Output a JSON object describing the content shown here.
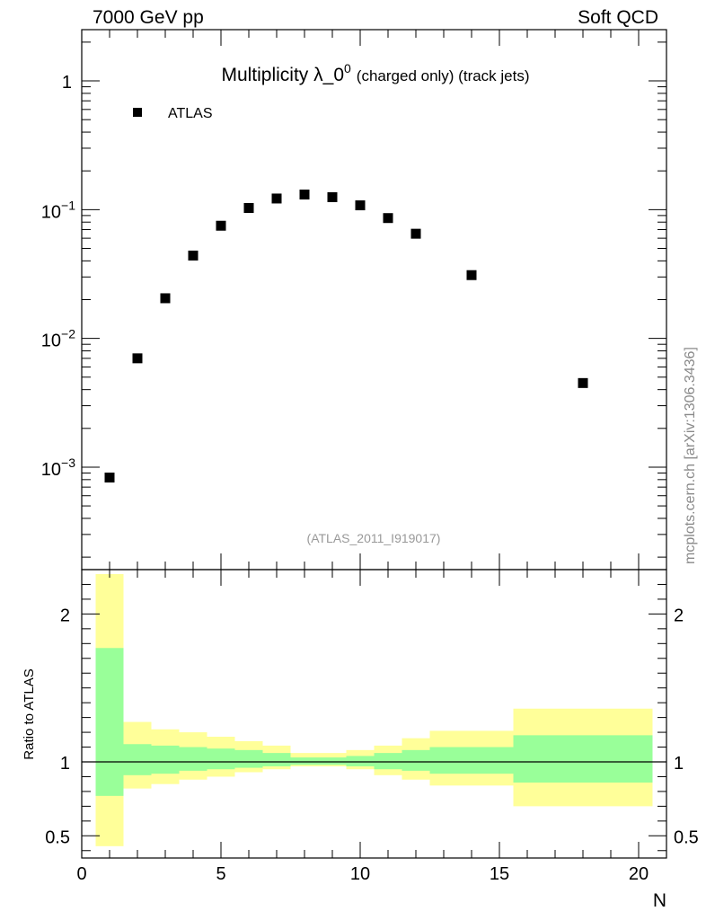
{
  "header": {
    "left_label": "7000 GeV pp",
    "right_label": "Soft QCD"
  },
  "watermark": "mcplots.cern.ch [arXiv:1306.3436]",
  "chart_data": [
    {
      "type": "scatter",
      "title": "Multiplicity λ_0",
      "title_superscript": "0",
      "title_suffix": "(charged only) (track jets)",
      "analysis_label": "(ATLAS_2011_I919017)",
      "legend": {
        "entries": [
          "ATLAS"
        ],
        "placement": "top-left"
      },
      "y_scale": "log",
      "xlim": [
        0,
        21
      ],
      "ylim": [
        0.00016,
        2.5
      ],
      "y_ticks": [
        {
          "value": 1,
          "label": "1"
        },
        {
          "value": 0.1,
          "label": "10",
          "exp": "−1"
        },
        {
          "value": 0.01,
          "label": "10",
          "exp": "−2"
        },
        {
          "value": 0.001,
          "label": "10",
          "exp": "−3"
        }
      ],
      "series": [
        {
          "name": "ATLAS",
          "marker": "square",
          "color": "#000000",
          "points": [
            {
              "x": 1,
              "y": 0.00083
            },
            {
              "x": 2,
              "y": 0.007
            },
            {
              "x": 3,
              "y": 0.0205
            },
            {
              "x": 4,
              "y": 0.044
            },
            {
              "x": 5,
              "y": 0.075
            },
            {
              "x": 6,
              "y": 0.103
            },
            {
              "x": 7,
              "y": 0.122
            },
            {
              "x": 8,
              "y": 0.131
            },
            {
              "x": 9,
              "y": 0.125
            },
            {
              "x": 10,
              "y": 0.108
            },
            {
              "x": 11,
              "y": 0.086
            },
            {
              "x": 12,
              "y": 0.065
            },
            {
              "x": 14,
              "y": 0.031
            },
            {
              "x": 18,
              "y": 0.0045
            }
          ]
        }
      ]
    },
    {
      "type": "area",
      "ylabel": "Ratio to ATLAS",
      "xlabel": "N",
      "xlim": [
        0,
        21
      ],
      "ylim": [
        0.35,
        2.3
      ],
      "x_ticks": [
        0,
        5,
        10,
        15,
        20
      ],
      "y_ticks": [
        {
          "value": 0.5,
          "label": "0.5"
        },
        {
          "value": 1,
          "label": "1"
        },
        {
          "value": 2,
          "label": "2"
        }
      ],
      "reference_line": 1,
      "bands": [
        {
          "name": "stat",
          "color": "#99ff99",
          "description": "inner uncertainty band"
        },
        {
          "name": "total",
          "color": "#ffff99",
          "description": "outer uncertainty band"
        }
      ],
      "bins": [
        {
          "xlo": 0.5,
          "xhi": 1.5,
          "inner": [
            0.77,
            1.77
          ],
          "outer": [
            0.43,
            2.27
          ]
        },
        {
          "xlo": 1.5,
          "xhi": 2.5,
          "inner": [
            0.91,
            1.12
          ],
          "outer": [
            0.82,
            1.27
          ]
        },
        {
          "xlo": 2.5,
          "xhi": 3.5,
          "inner": [
            0.92,
            1.11
          ],
          "outer": [
            0.85,
            1.22
          ]
        },
        {
          "xlo": 3.5,
          "xhi": 4.5,
          "inner": [
            0.94,
            1.1
          ],
          "outer": [
            0.88,
            1.2
          ]
        },
        {
          "xlo": 4.5,
          "xhi": 5.5,
          "inner": [
            0.95,
            1.09
          ],
          "outer": [
            0.9,
            1.17
          ]
        },
        {
          "xlo": 5.5,
          "xhi": 6.5,
          "inner": [
            0.96,
            1.08
          ],
          "outer": [
            0.93,
            1.14
          ]
        },
        {
          "xlo": 6.5,
          "xhi": 7.5,
          "inner": [
            0.97,
            1.06
          ],
          "outer": [
            0.95,
            1.11
          ]
        },
        {
          "xlo": 7.5,
          "xhi": 8.5,
          "inner": [
            0.98,
            1.03
          ],
          "outer": [
            0.97,
            1.06
          ]
        },
        {
          "xlo": 8.5,
          "xhi": 9.5,
          "inner": [
            0.98,
            1.03
          ],
          "outer": [
            0.97,
            1.06
          ]
        },
        {
          "xlo": 9.5,
          "xhi": 10.5,
          "inner": [
            0.97,
            1.04
          ],
          "outer": [
            0.95,
            1.08
          ]
        },
        {
          "xlo": 10.5,
          "xhi": 11.5,
          "inner": [
            0.95,
            1.06
          ],
          "outer": [
            0.91,
            1.11
          ]
        },
        {
          "xlo": 11.5,
          "xhi": 12.5,
          "inner": [
            0.94,
            1.08
          ],
          "outer": [
            0.88,
            1.16
          ]
        },
        {
          "xlo": 12.5,
          "xhi": 15.5,
          "inner": [
            0.92,
            1.1
          ],
          "outer": [
            0.84,
            1.21
          ]
        },
        {
          "xlo": 15.5,
          "xhi": 20.5,
          "inner": [
            0.86,
            1.18
          ],
          "outer": [
            0.7,
            1.36
          ]
        }
      ]
    }
  ]
}
